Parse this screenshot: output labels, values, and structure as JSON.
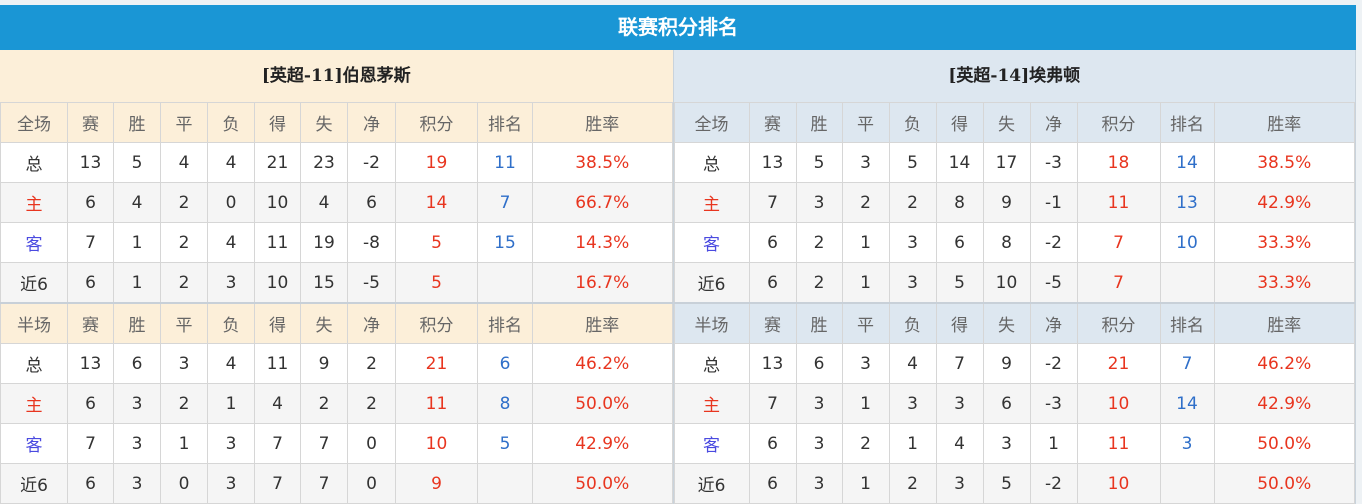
{
  "title": "联赛积分排名",
  "headers_full": [
    "全场",
    "赛",
    "胜",
    "平",
    "负",
    "得",
    "失",
    "净",
    "积分",
    "排名",
    "胜率"
  ],
  "headers_half": [
    "半场",
    "赛",
    "胜",
    "平",
    "负",
    "得",
    "失",
    "净",
    "积分",
    "排名",
    "胜率"
  ],
  "teams": [
    {
      "name": "[英超-11]伯恩茅斯",
      "full": [
        [
          "总",
          "13",
          "5",
          "4",
          "4",
          "21",
          "23",
          "-2",
          "19",
          "11",
          "38.5%"
        ],
        [
          "主",
          "6",
          "4",
          "2",
          "0",
          "10",
          "4",
          "6",
          "14",
          "7",
          "66.7%"
        ],
        [
          "客",
          "7",
          "1",
          "2",
          "4",
          "11",
          "19",
          "-8",
          "5",
          "15",
          "14.3%"
        ],
        [
          "近6",
          "6",
          "1",
          "2",
          "3",
          "10",
          "15",
          "-5",
          "5",
          "",
          "16.7%"
        ]
      ],
      "half": [
        [
          "总",
          "13",
          "6",
          "3",
          "4",
          "11",
          "9",
          "2",
          "21",
          "6",
          "46.2%"
        ],
        [
          "主",
          "6",
          "3",
          "2",
          "1",
          "4",
          "2",
          "2",
          "11",
          "8",
          "50.0%"
        ],
        [
          "客",
          "7",
          "3",
          "1",
          "3",
          "7",
          "7",
          "0",
          "10",
          "5",
          "42.9%"
        ],
        [
          "近6",
          "6",
          "3",
          "0",
          "3",
          "7",
          "7",
          "0",
          "9",
          "",
          "50.0%"
        ]
      ]
    },
    {
      "name": "[英超-14]埃弗顿",
      "full": [
        [
          "总",
          "13",
          "5",
          "3",
          "5",
          "14",
          "17",
          "-3",
          "18",
          "14",
          "38.5%"
        ],
        [
          "主",
          "7",
          "3",
          "2",
          "2",
          "8",
          "9",
          "-1",
          "11",
          "13",
          "42.9%"
        ],
        [
          "客",
          "6",
          "2",
          "1",
          "3",
          "6",
          "8",
          "-2",
          "7",
          "10",
          "33.3%"
        ],
        [
          "近6",
          "6",
          "2",
          "1",
          "3",
          "5",
          "10",
          "-5",
          "7",
          "",
          "33.3%"
        ]
      ],
      "half": [
        [
          "总",
          "13",
          "6",
          "3",
          "4",
          "7",
          "9",
          "-2",
          "21",
          "7",
          "46.2%"
        ],
        [
          "主",
          "7",
          "3",
          "1",
          "3",
          "3",
          "6",
          "-3",
          "10",
          "14",
          "42.9%"
        ],
        [
          "客",
          "6",
          "3",
          "2",
          "1",
          "4",
          "3",
          "1",
          "11",
          "3",
          "50.0%"
        ],
        [
          "近6",
          "6",
          "3",
          "1",
          "2",
          "3",
          "5",
          "-2",
          "10",
          "",
          "50.0%"
        ]
      ]
    }
  ]
}
